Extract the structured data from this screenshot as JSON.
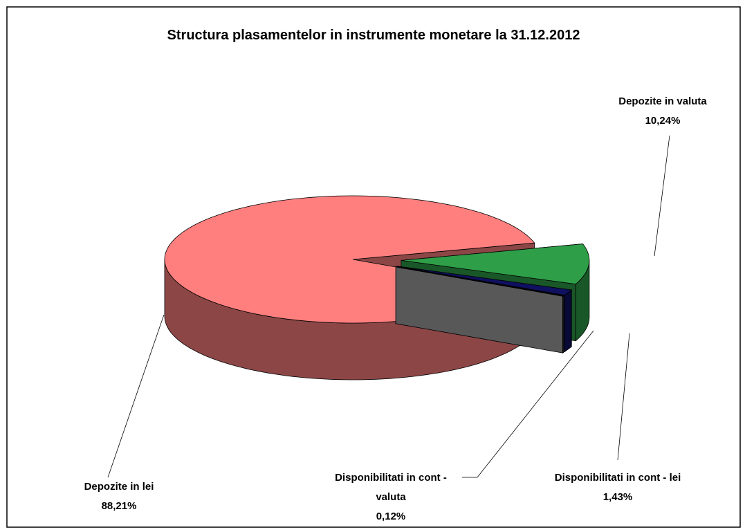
{
  "chart_data": {
    "type": "pie3d",
    "title": "Structura plasamentelor in instrumente monetare la 31.12.2012",
    "categories": [
      "Depozite in lei",
      "Depozite in valuta",
      "Disponibilitati in cont - lei",
      "Disponibilitati in cont - valuta"
    ],
    "values": [
      88.21,
      10.24,
      1.43,
      0.12
    ],
    "value_labels": [
      "88,21%",
      "10,24%",
      "1,43%",
      "0,12%"
    ],
    "colors": [
      "#ff7f7f",
      "#2e9e48",
      "#101060",
      "#a0a0a0"
    ]
  }
}
